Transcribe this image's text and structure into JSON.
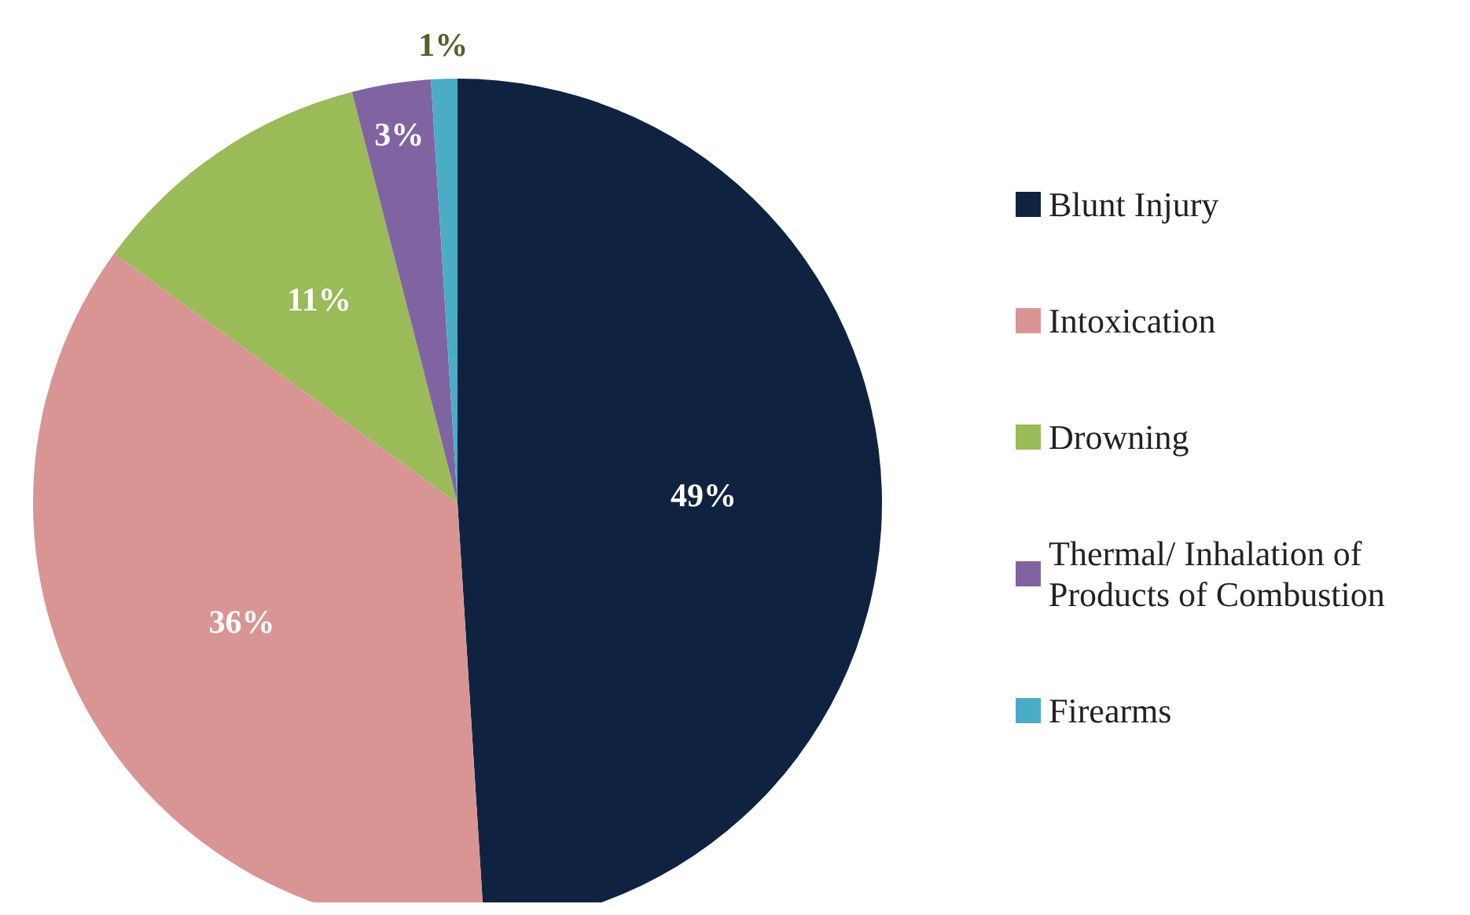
{
  "chart_data": {
    "type": "pie",
    "categories": [
      "Blunt Injury",
      "Intoxication",
      "Drowning",
      "Thermal/ Inhalation of Products of Combustion",
      "Firearms"
    ],
    "values": [
      49,
      36,
      11,
      3,
      1
    ],
    "colors": [
      "#0f2341",
      "#d99594",
      "#9bbb59",
      "#8064a2",
      "#4bacc6"
    ],
    "value_labels": [
      "49%",
      "36%",
      "11%",
      "3%",
      "1%"
    ],
    "legend": "right"
  }
}
